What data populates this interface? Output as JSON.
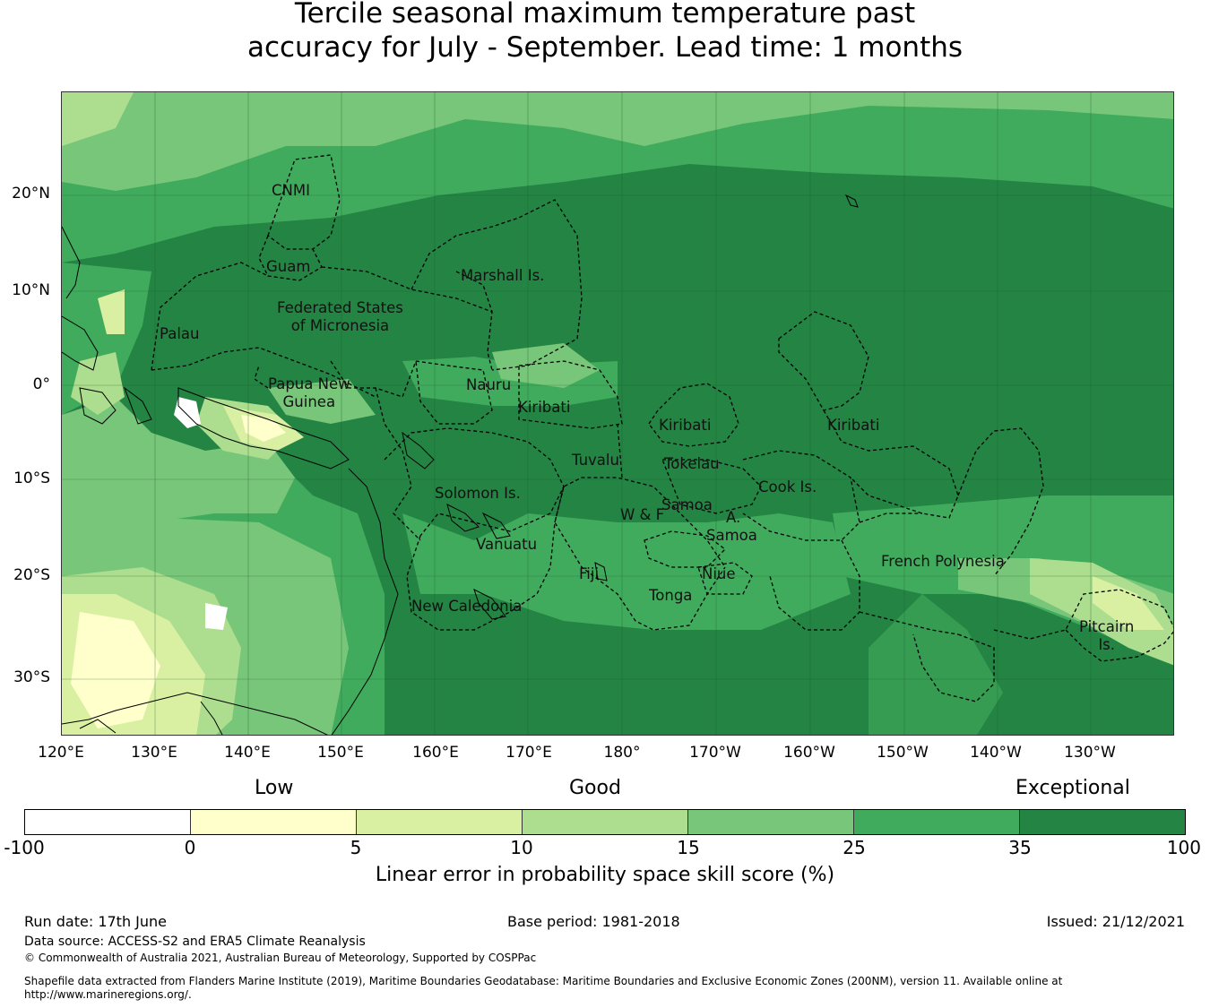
{
  "title": {
    "line1": "Tercile seasonal maximum temperature past",
    "line2": "accuracy for July - September. Lead time: 1 months"
  },
  "map": {
    "lat_labels": [
      "20°N",
      "10°N",
      "0°",
      "10°S",
      "20°S",
      "30°S"
    ],
    "lon_labels": [
      "120°E",
      "130°E",
      "140°E",
      "150°E",
      "160°E",
      "170°E",
      "180°",
      "170°W",
      "160°W",
      "150°W",
      "140°W",
      "130°W"
    ],
    "regions": [
      {
        "name": "cnmi",
        "text": "CNMI"
      },
      {
        "name": "guam",
        "text": "Guam"
      },
      {
        "name": "marshall",
        "text": "Marshall Is."
      },
      {
        "name": "fsm",
        "text": "Federated States\nof Micronesia"
      },
      {
        "name": "palau",
        "text": "Palau"
      },
      {
        "name": "png",
        "text": "Papua New\nGuinea"
      },
      {
        "name": "nauru",
        "text": "Nauru"
      },
      {
        "name": "kiribati-w",
        "text": "Kiribati"
      },
      {
        "name": "kiribati-c",
        "text": "Kiribati"
      },
      {
        "name": "kiribati-e",
        "text": "Kiribati"
      },
      {
        "name": "tuvalu",
        "text": "Tuvalu"
      },
      {
        "name": "tokelau",
        "text": "Tokelau"
      },
      {
        "name": "solomon",
        "text": "Solomon Is."
      },
      {
        "name": "cook",
        "text": "Cook Is."
      },
      {
        "name": "samoa",
        "text": "Samoa"
      },
      {
        "name": "wf",
        "text": "W & F"
      },
      {
        "name": "asamoa-a",
        "text": "A."
      },
      {
        "name": "asamoa-s",
        "text": "Samoa"
      },
      {
        "name": "vanuatu",
        "text": "Vanuatu"
      },
      {
        "name": "fiji",
        "text": "Fiji"
      },
      {
        "name": "niue",
        "text": "Niue"
      },
      {
        "name": "tonga",
        "text": "Tonga"
      },
      {
        "name": "frpoly",
        "text": "French Polynesia"
      },
      {
        "name": "newcal",
        "text": "New Caledonia"
      },
      {
        "name": "pitcairn",
        "text": "Pitcairn\nIs."
      }
    ]
  },
  "legend": {
    "categories": [
      "Low",
      "Good",
      "Exceptional"
    ],
    "bins": [
      "-100",
      "0",
      "5",
      "10",
      "15",
      "25",
      "35",
      "100"
    ],
    "colors": [
      "#ffffff",
      "#ffffcc",
      "#d9f0a3",
      "#addd8e",
      "#78c679",
      "#41ab5d",
      "#238443"
    ],
    "label": "Linear error in probability space skill score (%)"
  },
  "footer": {
    "run_date": "Run date: 17th June",
    "base_period": "Base period: 1981-2018",
    "issued": "Issued: 21/12/2021",
    "data_source": "Data source: ACCESS-S2 and ERA5 Climate Reanalysis",
    "copyright": "© Commonwealth of Australia 2021, Australian Bureau of Meteorology, Supported by COSPPac",
    "shapefile_line1": "Shapefile data extracted from Flanders Marine Institute (2019), Maritime Boundaries Geodatabase: Maritime Boundaries and Exclusive Economic Zones (200NM), version 11. Available online at",
    "shapefile_line2": "http://www.marineregions.org/."
  }
}
